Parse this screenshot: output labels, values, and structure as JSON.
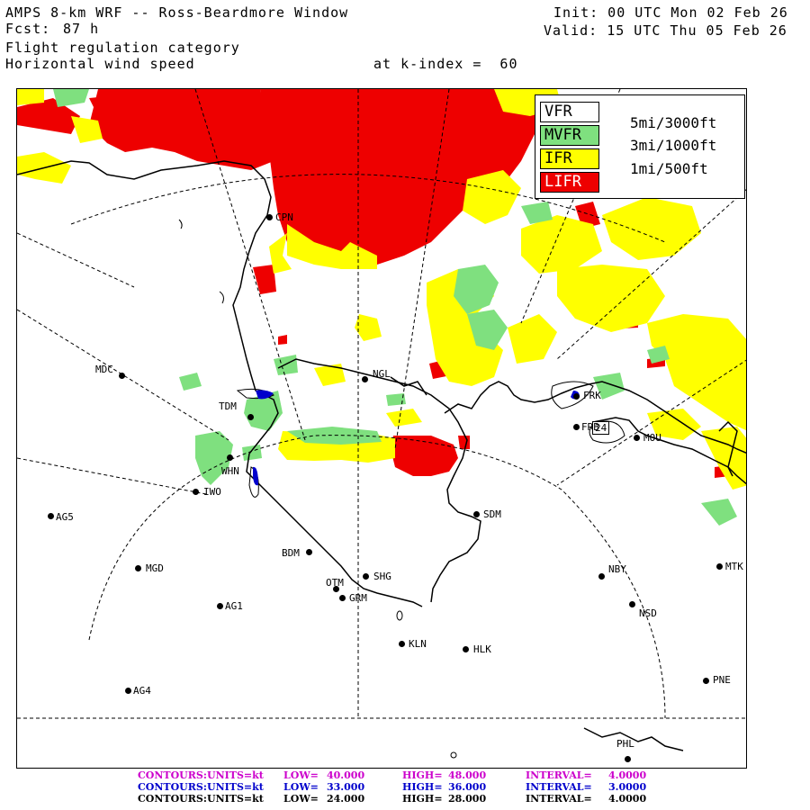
{
  "header": {
    "title": "AMPS 8-km WRF -- Ross-Beardmore Window",
    "fcst_label": "Fcst:",
    "fcst_value": "87 h",
    "field1": "Flight regulation category",
    "field2": "Horizontal wind speed",
    "init": "Init: 00 UTC Mon 02 Feb 26",
    "valid": "Valid: 15 UTC Thu 05 Feb 26",
    "level": "at k-index =  60"
  },
  "legend": {
    "items": [
      {
        "label": "VFR",
        "color": "#ffffff",
        "text_color": "#000000"
      },
      {
        "label": "MVFR",
        "color": "#7fe07f",
        "text_color": "#000000"
      },
      {
        "label": "IFR",
        "color": "#ffff00",
        "text_color": "#000000"
      },
      {
        "label": "LIFR",
        "color": "#ee0000",
        "text_color": "#ffffff"
      }
    ],
    "thresholds": [
      "5mi/3000ft",
      "3mi/1000ft",
      "1mi/500ft"
    ]
  },
  "stations": [
    {
      "id": "CPN"
    },
    {
      "id": "MDC"
    },
    {
      "id": "NGL"
    },
    {
      "id": "TDM"
    },
    {
      "id": "WHN"
    },
    {
      "id": "IWO"
    },
    {
      "id": "AG5"
    },
    {
      "id": "BDM"
    },
    {
      "id": "MGD"
    },
    {
      "id": "OTM"
    },
    {
      "id": "SHG"
    },
    {
      "id": "GRM"
    },
    {
      "id": "AG1"
    },
    {
      "id": "SDM"
    },
    {
      "id": "FRK"
    },
    {
      "id": "FRB"
    },
    {
      "id": "MOU"
    },
    {
      "id": "NBY"
    },
    {
      "id": "MTK"
    },
    {
      "id": "NSD"
    },
    {
      "id": "KLN"
    },
    {
      "id": "HLK"
    },
    {
      "id": "AG4"
    },
    {
      "id": "PNE"
    },
    {
      "id": "PHL"
    }
  ],
  "contour_label": "24",
  "contours": [
    {
      "prefix": "CONTOURS:",
      "units": "UNITS=kt",
      "low_label": "LOW=",
      "low": "40.000",
      "high_label": "HIGH=",
      "high": "48.000",
      "interval_label": "INTERVAL=",
      "interval": "4.0000",
      "color": "#cc00cc"
    },
    {
      "prefix": "CONTOURS:",
      "units": "UNITS=kt",
      "low_label": "LOW=",
      "low": "33.000",
      "high_label": "HIGH=",
      "high": "36.000",
      "interval_label": "INTERVAL=",
      "interval": "3.0000",
      "color": "#0000cc"
    },
    {
      "prefix": "CONTOURS:",
      "units": "UNITS=kt",
      "low_label": "LOW=",
      "low": "24.000",
      "high_label": "HIGH=",
      "high": "28.000",
      "interval_label": "INTERVAL=",
      "interval": "4.0000",
      "color": "#000000"
    }
  ],
  "colors": {
    "lifr": "#ee0000",
    "ifr": "#ffff00",
    "mvfr": "#7fe07f",
    "coast": "#000000",
    "wind_blue": "#0000cc"
  }
}
